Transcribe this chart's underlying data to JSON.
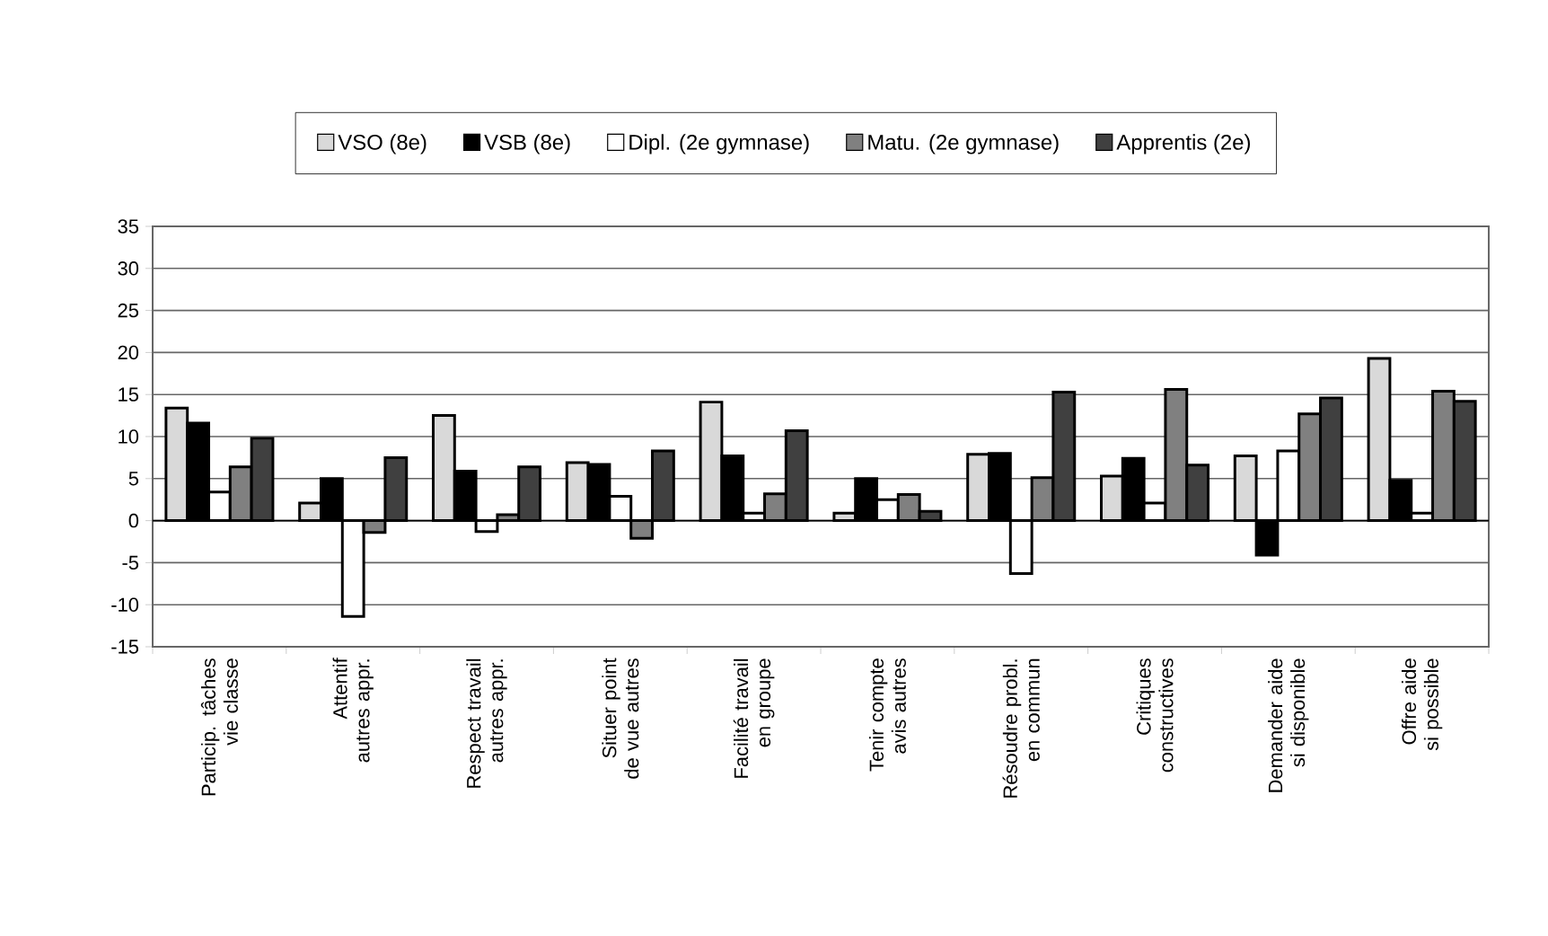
{
  "chart_data": {
    "type": "bar",
    "categories": [
      "Particip. tâches vie classe",
      "Attentif autres appr.",
      "Respect travail autres appr.",
      "Situer point de vue autres",
      "Facilité travail en groupe",
      "Tenir compte avis autres",
      "Résoudre probl. en commun",
      "Critiques constructives",
      "Demander aide si disponible",
      "Offre aide si possible"
    ],
    "series": [
      {
        "name": "VSO (8e)",
        "color": "#d9d9d9",
        "values": [
          13.4,
          2.1,
          12.5,
          6.9,
          14.1,
          0.9,
          7.9,
          5.3,
          7.7,
          19.3
        ]
      },
      {
        "name": "VSB (8e)",
        "color": "#000000",
        "values": [
          11.6,
          5.0,
          5.9,
          6.7,
          7.7,
          5.0,
          8.0,
          7.4,
          -4.1,
          4.8
        ]
      },
      {
        "name": "Dipl. (2e gymnase)",
        "color": "#ffffff",
        "values": [
          3.4,
          -11.4,
          -1.3,
          2.9,
          0.9,
          2.5,
          -6.3,
          2.1,
          8.3,
          0.9
        ]
      },
      {
        "name": "Matu. (2e gymnase)",
        "color": "#808080",
        "values": [
          6.4,
          -1.4,
          0.7,
          -2.1,
          3.2,
          3.1,
          5.1,
          15.6,
          12.7,
          15.4
        ]
      },
      {
        "name": "Apprentis (2e)",
        "color": "#404040",
        "values": [
          9.8,
          7.5,
          6.4,
          8.3,
          10.7,
          1.1,
          15.3,
          6.6,
          14.6,
          14.2
        ]
      }
    ],
    "ylim": [
      -15,
      35
    ],
    "yticks": [
      -15,
      -10,
      -5,
      0,
      5,
      10,
      15,
      20,
      25,
      30,
      35
    ],
    "grid": "y",
    "legend": "top"
  }
}
